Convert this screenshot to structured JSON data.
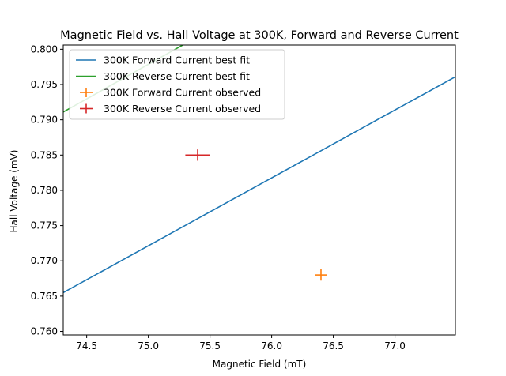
{
  "chart_data": {
    "type": "scatter",
    "title": "Magnetic Field vs. Hall Voltage at 300K, Forward and Reverse Current",
    "xlabel": "Magnetic Field (mT)",
    "ylabel": "Hall Voltage (mV)",
    "xlim": [
      74.31,
      77.49
    ],
    "ylim": [
      0.7595,
      0.8006
    ],
    "xticks": [
      74.5,
      75.0,
      75.5,
      76.0,
      76.5,
      77.0
    ],
    "xtick_labels": [
      "74.5",
      "75.0",
      "75.5",
      "76.0",
      "76.5",
      "77.0"
    ],
    "yticks": [
      0.76,
      0.765,
      0.77,
      0.775,
      0.78,
      0.785,
      0.79,
      0.795,
      0.8
    ],
    "ytick_labels": [
      "0.760",
      "0.765",
      "0.770",
      "0.775",
      "0.780",
      "0.785",
      "0.790",
      "0.795",
      "0.800"
    ],
    "grid": false,
    "legend_position": "top-left",
    "lines": [
      {
        "name": "300K Forward Current best fit",
        "color": "#1f77b4",
        "x": [
          74.31,
          77.49
        ],
        "y": [
          0.7655,
          0.7961
        ]
      },
      {
        "name": "300K Reverse Current best fit",
        "color": "#2ca02c",
        "x": [
          74.31,
          75.3
        ],
        "y": [
          0.7911,
          0.8008
        ]
      }
    ],
    "points": [
      {
        "name": "300K Forward Current observed",
        "color": "#ff7f0e",
        "x": 76.4,
        "y": 0.768,
        "xerr": 0.05,
        "yerr": 0.0008
      },
      {
        "name": "300K Reverse Current observed",
        "color": "#d62728",
        "x": 75.4,
        "y": 0.785,
        "xerr": 0.1,
        "yerr": 0.0008
      }
    ],
    "legend": [
      {
        "label": "300K Forward Current best fit",
        "color": "#1f77b4",
        "marker": "line"
      },
      {
        "label": "300K Reverse Current best fit",
        "color": "#2ca02c",
        "marker": "line"
      },
      {
        "label": "300K Forward Current observed",
        "color": "#ff7f0e",
        "marker": "errorbar"
      },
      {
        "label": "300K Reverse Current observed",
        "color": "#d62728",
        "marker": "errorbar"
      }
    ]
  }
}
